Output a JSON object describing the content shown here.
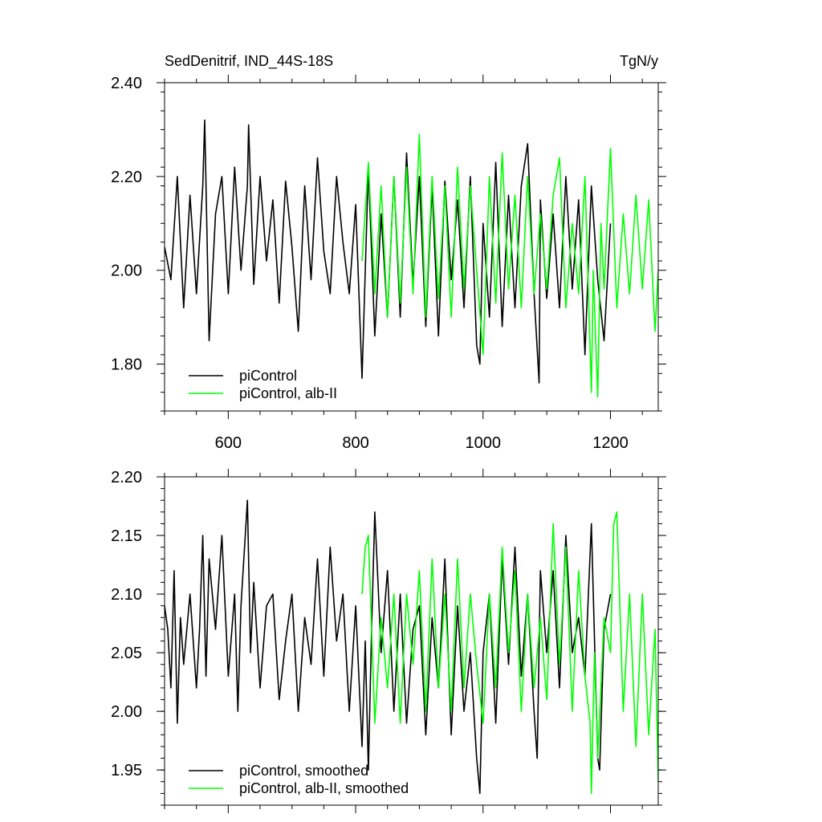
{
  "chart_data": [
    {
      "type": "line",
      "title": "SedDenitrif, IND_44S-18S",
      "units": "TgN/y",
      "xlabel": "",
      "ylabel": "",
      "xlim": [
        500,
        1275
      ],
      "ylim": [
        1.7,
        2.4
      ],
      "xticks": [
        600,
        800,
        1000,
        1200
      ],
      "xtick_labels": [
        "600",
        "800",
        "1000",
        "1200"
      ],
      "yticks": [
        1.8,
        2.0,
        2.2,
        2.4
      ],
      "ytick_labels": [
        "1.80",
        "2.00",
        "2.20",
        "2.40"
      ],
      "grid": false,
      "legend_position": "bottom-left",
      "series": [
        {
          "name": "piControl",
          "color": "#000000",
          "x": [
            500,
            510,
            520,
            530,
            540,
            550,
            560,
            563,
            570,
            580,
            590,
            600,
            610,
            620,
            630,
            632,
            640,
            650,
            660,
            670,
            680,
            690,
            700,
            710,
            720,
            730,
            740,
            750,
            760,
            770,
            780,
            790,
            800,
            810,
            820,
            830,
            840,
            850,
            860,
            870,
            880,
            890,
            900,
            910,
            920,
            930,
            940,
            950,
            960,
            970,
            980,
            990,
            995,
            1000,
            1010,
            1020,
            1030,
            1040,
            1050,
            1060,
            1070,
            1080,
            1088,
            1090,
            1100,
            1110,
            1120,
            1130,
            1140,
            1150,
            1160,
            1170,
            1180,
            1190,
            1200
          ],
          "values": [
            2.05,
            1.98,
            2.2,
            1.92,
            2.16,
            1.95,
            2.18,
            2.32,
            1.85,
            2.12,
            2.2,
            1.95,
            2.22,
            2.0,
            2.18,
            2.31,
            1.97,
            2.2,
            2.02,
            2.15,
            1.93,
            2.19,
            2.05,
            1.87,
            2.18,
            1.98,
            2.24,
            2.04,
            1.95,
            2.2,
            2.06,
            1.95,
            2.14,
            1.77,
            2.22,
            1.86,
            2.12,
            1.9,
            2.2,
            1.9,
            2.25,
            1.97,
            2.2,
            1.88,
            2.18,
            1.86,
            2.19,
            1.98,
            2.15,
            1.92,
            2.2,
            1.84,
            1.8,
            2.1,
            1.9,
            2.23,
            1.88,
            2.16,
            1.92,
            2.18,
            2.27,
            1.95,
            1.76,
            2.15,
            1.94,
            2.12,
            1.92,
            2.2,
            1.96,
            2.15,
            1.82,
            2.18,
            1.98,
            1.85,
            2.1
          ]
        },
        {
          "name": "piControl, alb-II",
          "color": "#00ff00",
          "x": [
            810,
            820,
            830,
            840,
            850,
            860,
            870,
            880,
            890,
            900,
            910,
            920,
            930,
            940,
            950,
            960,
            970,
            980,
            990,
            1000,
            1010,
            1020,
            1030,
            1040,
            1050,
            1060,
            1070,
            1080,
            1090,
            1100,
            1110,
            1120,
            1130,
            1140,
            1150,
            1160,
            1170,
            1173,
            1180,
            1185,
            1190,
            1200,
            1210,
            1220,
            1230,
            1240,
            1250,
            1260,
            1270,
            1275
          ],
          "values": [
            2.02,
            2.23,
            1.95,
            2.18,
            1.9,
            2.2,
            1.93,
            2.22,
            1.95,
            2.29,
            1.9,
            2.2,
            1.94,
            2.18,
            1.9,
            2.22,
            1.96,
            2.18,
            2.0,
            1.82,
            2.2,
            1.93,
            2.25,
            1.96,
            2.16,
            1.92,
            2.2,
            1.95,
            2.12,
            1.96,
            2.16,
            2.24,
            1.92,
            2.1,
            1.95,
            2.2,
            1.74,
            2.0,
            1.73,
            2.1,
            1.96,
            2.26,
            1.92,
            2.12,
            1.95,
            2.16,
            1.96,
            2.15,
            1.87,
            2.0
          ]
        }
      ]
    },
    {
      "type": "line",
      "title": "",
      "xlabel": "",
      "ylabel": "",
      "xlim": [
        500,
        1275
      ],
      "ylim": [
        1.92,
        2.2
      ],
      "xticks": [
        600,
        800,
        1000,
        1200
      ],
      "xtick_labels": [],
      "yticks": [
        1.95,
        2.0,
        2.05,
        2.1,
        2.15,
        2.2
      ],
      "ytick_labels": [
        "1.95",
        "2.00",
        "2.05",
        "2.10",
        "2.15",
        "2.20"
      ],
      "grid": false,
      "legend_position": "bottom-left",
      "series": [
        {
          "name": "piControl, smoothed",
          "color": "#000000",
          "x": [
            500,
            505,
            510,
            515,
            520,
            525,
            530,
            540,
            550,
            555,
            560,
            565,
            570,
            580,
            590,
            600,
            610,
            615,
            620,
            630,
            635,
            640,
            650,
            660,
            670,
            680,
            690,
            700,
            710,
            720,
            730,
            740,
            750,
            760,
            770,
            780,
            790,
            800,
            810,
            815,
            820,
            825,
            830,
            840,
            850,
            860,
            870,
            880,
            890,
            900,
            910,
            920,
            930,
            940,
            950,
            960,
            970,
            980,
            990,
            995,
            1000,
            1010,
            1020,
            1030,
            1040,
            1050,
            1060,
            1070,
            1080,
            1085,
            1090,
            1100,
            1110,
            1120,
            1130,
            1140,
            1150,
            1160,
            1170,
            1180,
            1183,
            1190,
            1200
          ],
          "values": [
            2.09,
            2.07,
            2.02,
            2.12,
            1.99,
            2.08,
            2.04,
            2.1,
            2.02,
            2.07,
            2.15,
            2.03,
            2.13,
            2.07,
            2.15,
            2.03,
            2.1,
            2.0,
            2.09,
            2.18,
            2.05,
            2.11,
            2.02,
            2.09,
            2.1,
            2.01,
            2.06,
            2.1,
            2.0,
            2.08,
            2.04,
            2.13,
            2.03,
            2.14,
            2.06,
            2.1,
            2.0,
            2.09,
            1.97,
            2.06,
            1.95,
            2.07,
            2.17,
            2.05,
            2.12,
            2.0,
            2.1,
            1.99,
            2.07,
            2.09,
            1.98,
            2.08,
            2.02,
            2.13,
            1.98,
            2.09,
            2.0,
            2.05,
            1.96,
            1.93,
            2.05,
            2.1,
            1.99,
            2.13,
            2.04,
            2.14,
            2.03,
            2.1,
            2.0,
            1.96,
            2.12,
            2.05,
            2.12,
            2.02,
            2.15,
            2.05,
            2.08,
            2.03,
            2.16,
            1.96,
            1.95,
            2.07,
            2.1
          ]
        },
        {
          "name": "piControl, alb-II, smoothed",
          "color": "#00ff00",
          "x": [
            810,
            815,
            820,
            830,
            840,
            850,
            860,
            870,
            880,
            890,
            900,
            910,
            920,
            930,
            940,
            950,
            960,
            970,
            980,
            990,
            1000,
            1010,
            1020,
            1030,
            1040,
            1050,
            1060,
            1070,
            1080,
            1090,
            1100,
            1110,
            1120,
            1130,
            1140,
            1150,
            1160,
            1168,
            1170,
            1175,
            1180,
            1190,
            1200,
            1205,
            1210,
            1220,
            1230,
            1240,
            1250,
            1260,
            1270,
            1275
          ],
          "values": [
            2.1,
            2.14,
            2.15,
            1.99,
            2.08,
            2.02,
            2.1,
            1.99,
            2.1,
            2.04,
            2.12,
            2.0,
            2.13,
            2.02,
            2.1,
            2.0,
            2.13,
            2.02,
            2.1,
            2.04,
            1.99,
            2.1,
            2.02,
            2.14,
            2.05,
            2.12,
            2.0,
            2.1,
            2.02,
            2.08,
            2.01,
            2.16,
            2.04,
            2.14,
            2.0,
            2.12,
            2.03,
            1.99,
            1.93,
            2.05,
            1.96,
            2.08,
            2.05,
            2.16,
            2.17,
            2.0,
            2.1,
            1.97,
            2.1,
            1.98,
            2.07,
            1.94
          ]
        }
      ]
    }
  ]
}
